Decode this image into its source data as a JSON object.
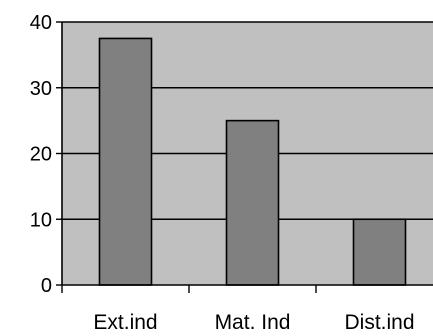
{
  "chart_data": {
    "type": "bar",
    "categories": [
      "Ext.ind",
      "Mat. Ind",
      "Dist.ind"
    ],
    "values": [
      37.5,
      25,
      10
    ],
    "title": "",
    "xlabel": "",
    "ylabel": "",
    "ylim": [
      0,
      40
    ],
    "yticks": [
      "0",
      "10",
      "20",
      "30",
      "40"
    ],
    "grid": true,
    "legend": "none"
  },
  "colors": {
    "plot_background": "#c0c0c0",
    "bar_fill": "#808080",
    "bar_stroke": "#000000",
    "gridline": "#000000",
    "axis": "#000000"
  }
}
